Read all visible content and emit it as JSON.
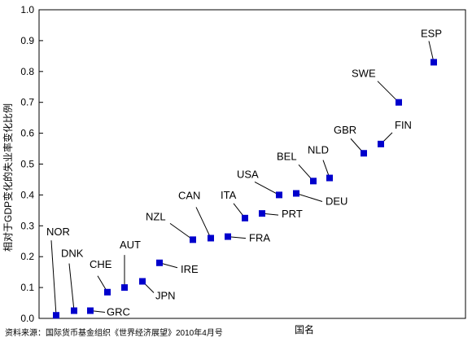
{
  "chart_data": {
    "type": "scatter",
    "title": "",
    "xlabel": "国名",
    "ylabel": "相对于GDP变化的失业率变化比例",
    "ylim": [
      0,
      1.0
    ],
    "yticks": [
      "0.0",
      "0.1",
      "0.2",
      "0.3",
      "0.4",
      "0.5",
      "0.6",
      "0.7",
      "0.8",
      "0.9",
      "1.0"
    ],
    "grid": false,
    "legend": "none",
    "marker_color": "#0000cc",
    "points": [
      {
        "label": "NOR",
        "y": 0.01
      },
      {
        "label": "DNK",
        "y": 0.025
      },
      {
        "label": "GRC",
        "y": 0.025
      },
      {
        "label": "CHE",
        "y": 0.085
      },
      {
        "label": "AUT",
        "y": 0.1
      },
      {
        "label": "JPN",
        "y": 0.12
      },
      {
        "label": "IRE",
        "y": 0.18
      },
      {
        "label": "NZL",
        "y": 0.255
      },
      {
        "label": "CAN",
        "y": 0.26
      },
      {
        "label": "FRA",
        "y": 0.265
      },
      {
        "label": "ITA",
        "y": 0.325
      },
      {
        "label": "PRT",
        "y": 0.34
      },
      {
        "label": "USA",
        "y": 0.4
      },
      {
        "label": "DEU",
        "y": 0.405
      },
      {
        "label": "BEL",
        "y": 0.445
      },
      {
        "label": "NLD",
        "y": 0.455
      },
      {
        "label": "GBR",
        "y": 0.535
      },
      {
        "label": "FIN",
        "y": 0.565
      },
      {
        "label": "SWE",
        "y": 0.7
      },
      {
        "label": "ESP",
        "y": 0.83
      }
    ]
  },
  "source_note": "资料来源：国际货币基金组织《世界经济展望》2010年4月号"
}
